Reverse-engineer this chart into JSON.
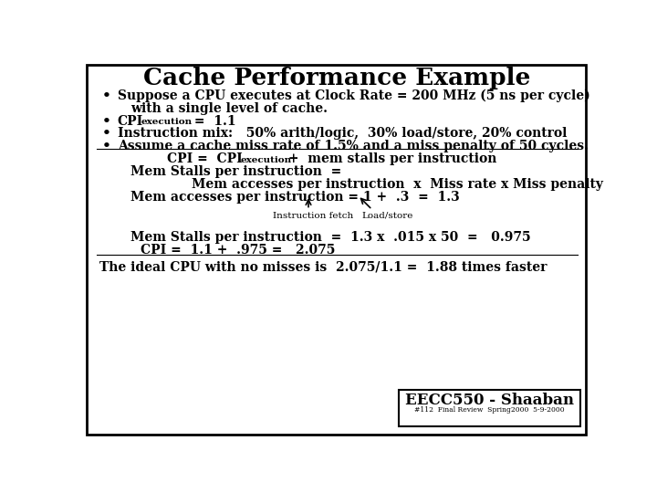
{
  "title": "Cache Performance Example",
  "bg_color": "#ffffff",
  "border_color": "#000000",
  "text_color": "#000000",
  "title_fontsize": 19,
  "body_fontsize": 10,
  "small_fontsize": 7.5,
  "footer_text": "EECC550 - Shaaban",
  "footer_sub": "#112  Final Review  Spring2000  5-9-2000"
}
